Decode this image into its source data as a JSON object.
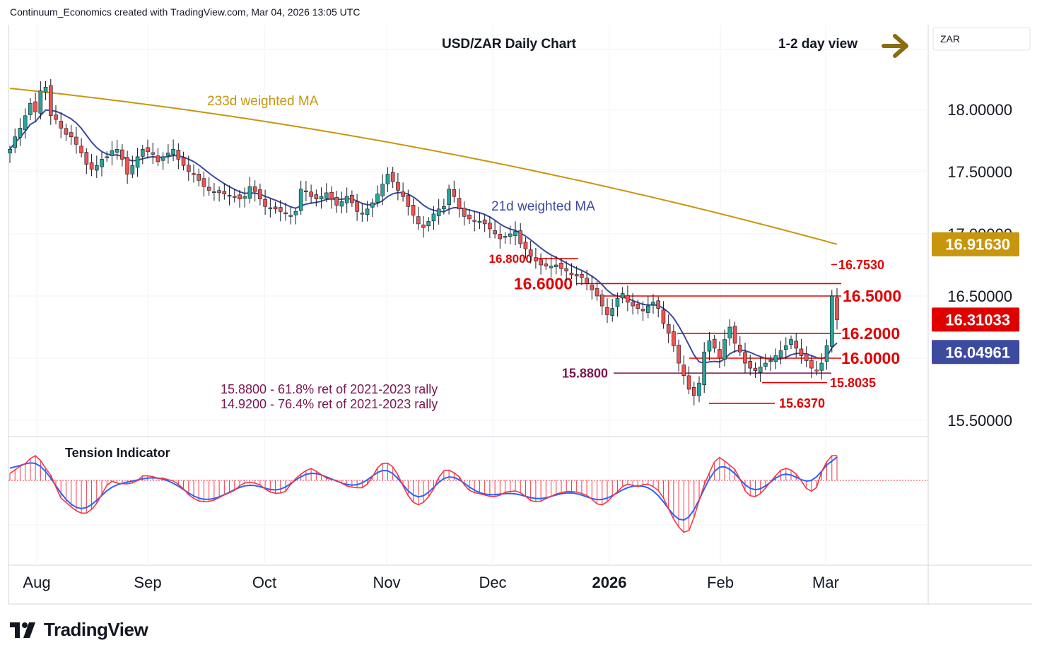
{
  "header": {
    "attribution": "Continuum_Economics created with TradingView.com, Mar 04, 2026 13:05 UTC"
  },
  "brand": {
    "logo_text": "TradingView",
    "logo_icon": "tradingview-logo-icon"
  },
  "colors": {
    "up": "#26a69a",
    "down": "#ef5350",
    "ma_long": "#c8960c",
    "ma_short": "#3c4aa0",
    "level_red": "#e00000",
    "fib": "#7a1550",
    "arrow": "#8a6d10",
    "histogram": "#f23645",
    "tension_line": "#2962ff",
    "tension_signal": "#f23645"
  },
  "chart_data": {
    "type": "candlestick",
    "title": "USD/ZAR Daily Chart",
    "view_label": "1-2 day view",
    "view_arrow_icon": "right-arrow-icon",
    "currency_label": "ZAR",
    "y_ticks": [
      "18.00000",
      "17.50000",
      "17.00000",
      "16.50000",
      "15.50000"
    ],
    "ylim": [
      15.4,
      18.8
    ],
    "x_ticks": [
      "Aug",
      "Sep",
      "Oct",
      "Nov",
      "Dec",
      "2026",
      "Feb",
      "Mar"
    ],
    "price_tags": [
      {
        "label": "16.91630",
        "value": 16.9163,
        "color": "#c8960c"
      },
      {
        "label": "16.31033",
        "value": 16.31033,
        "color": "#e00000"
      },
      {
        "label": "16.04961",
        "value": 16.04961,
        "color": "#3c4aa0"
      }
    ],
    "ma_labels": {
      "long": "233d weighted MA",
      "short": "21d weighted MA"
    },
    "levels": [
      {
        "label": "16.8000",
        "value": 16.8
      },
      {
        "label": "16.7530",
        "value": 16.753
      },
      {
        "label": "16.6000",
        "value": 16.6
      },
      {
        "label": "16.5000",
        "value": 16.5
      },
      {
        "label": "16.2000",
        "value": 16.2
      },
      {
        "label": "16.0000",
        "value": 16.0
      },
      {
        "label": "15.8800",
        "value": 15.88
      },
      {
        "label": "15.8035",
        "value": 15.8035
      },
      {
        "label": "15.6370",
        "value": 15.637
      }
    ],
    "fib_notes": [
      "15.8800 - 61.8% ret of 2021-2023 rally",
      "14.9200 - 76.4% ret of 2021-2023 rally"
    ],
    "close_series": [
      17.68,
      17.78,
      17.85,
      17.95,
      18.05,
      17.98,
      18.15,
      18.18,
      17.95,
      17.92,
      17.85,
      17.8,
      17.78,
      17.72,
      17.65,
      17.56,
      17.52,
      17.55,
      17.6,
      17.62,
      17.67,
      17.68,
      17.6,
      17.48,
      17.55,
      17.62,
      17.68,
      17.66,
      17.64,
      17.58,
      17.62,
      17.65,
      17.68,
      17.6,
      17.55,
      17.5,
      17.48,
      17.43,
      17.38,
      17.35,
      17.34,
      17.33,
      17.32,
      17.31,
      17.3,
      17.28,
      17.3,
      17.38,
      17.34,
      17.28,
      17.22,
      17.21,
      17.2,
      17.18,
      17.16,
      17.14,
      17.18,
      17.36,
      17.34,
      17.3,
      17.28,
      17.3,
      17.33,
      17.28,
      17.23,
      17.26,
      17.3,
      17.25,
      17.18,
      17.16,
      17.2,
      17.25,
      17.32,
      17.4,
      17.48,
      17.42,
      17.35,
      17.3,
      17.22,
      17.15,
      17.08,
      17.05,
      17.1,
      17.16,
      17.2,
      17.22,
      17.36,
      17.3,
      17.2,
      17.14,
      17.12,
      17.1,
      17.1,
      17.08,
      17.04,
      17.0,
      16.96,
      16.98,
      17.0,
      17.02,
      16.92,
      16.88,
      16.82,
      16.78,
      16.75,
      16.74,
      16.74,
      16.75,
      16.72,
      16.7,
      16.67,
      16.66,
      16.65,
      16.6,
      16.55,
      16.5,
      16.42,
      16.35,
      16.4,
      16.48,
      16.52,
      16.45,
      16.42,
      16.4,
      16.38,
      16.42,
      16.45,
      16.4,
      16.28,
      16.2,
      16.1,
      15.96,
      15.86,
      15.75,
      15.7,
      15.8,
      16.05,
      16.14,
      16.08,
      16.0,
      16.15,
      16.25,
      16.12,
      16.05,
      15.96,
      15.92,
      15.9,
      15.93,
      15.96,
      15.98,
      16.02,
      16.06,
      16.1,
      16.15,
      16.08,
      16.02,
      15.98,
      15.92,
      15.9,
      15.96,
      16.1,
      16.5,
      16.31
    ],
    "ma21_latest": 16.04961,
    "ma233_latest": 16.9163,
    "tension_indicator": {
      "label": "Tension Indicator"
    }
  }
}
